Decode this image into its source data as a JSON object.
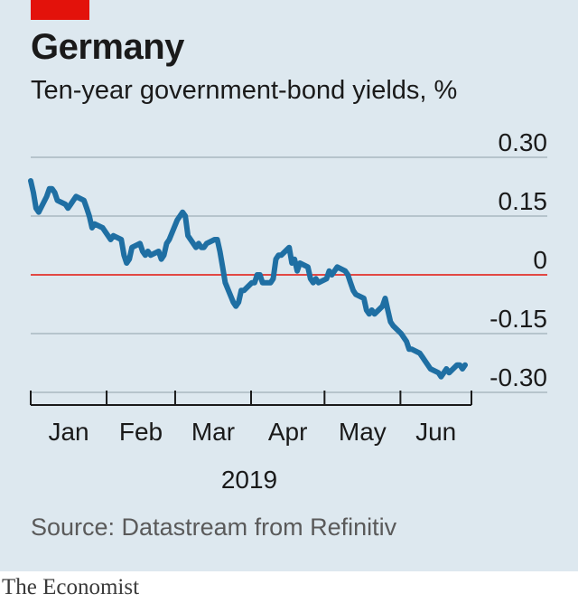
{
  "header": {
    "title": "Germany",
    "subtitle": "Ten-year government-bond yields, %"
  },
  "footer": {
    "source": "Source: Datastream from Refinitiv",
    "brand": "The Economist"
  },
  "colors": {
    "background": "#dde8ef",
    "line": "#1f6fa3",
    "zero_line": "#e3120b",
    "grid": "#aab7c0",
    "tag": "#e3120b"
  },
  "chart_data": {
    "type": "line",
    "title": "Germany",
    "subtitle": "Ten-year government-bond yields, %",
    "xlabel": "2019",
    "ylabel": "",
    "ylim": [
      -0.3,
      0.3
    ],
    "yticks": [
      0.3,
      0.15,
      0,
      -0.15,
      -0.3
    ],
    "ytick_labels": [
      "0.30",
      "0.15",
      "0",
      "-0.15",
      "-0.30"
    ],
    "months": [
      "Jan",
      "Feb",
      "Mar",
      "Apr",
      "May",
      "Jun"
    ],
    "year": "2019",
    "grid": true,
    "zero_line": true,
    "x_range": [
      "2019-01-01",
      "2019-06-13"
    ],
    "x": [
      "2019-01-01",
      "2019-01-02",
      "2019-01-03",
      "2019-01-04",
      "2019-01-07",
      "2019-01-08",
      "2019-01-09",
      "2019-01-10",
      "2019-01-11",
      "2019-01-14",
      "2019-01-15",
      "2019-01-16",
      "2019-01-17",
      "2019-01-18",
      "2019-01-21",
      "2019-01-22",
      "2019-01-23",
      "2019-01-24",
      "2019-01-25",
      "2019-01-28",
      "2019-01-29",
      "2019-01-30",
      "2019-01-31",
      "2019-02-01",
      "2019-02-04",
      "2019-02-05",
      "2019-02-06",
      "2019-02-07",
      "2019-02-08",
      "2019-02-11",
      "2019-02-12",
      "2019-02-13",
      "2019-02-14",
      "2019-02-15",
      "2019-02-18",
      "2019-02-19",
      "2019-02-20",
      "2019-02-21",
      "2019-02-22",
      "2019-02-25",
      "2019-02-26",
      "2019-02-27",
      "2019-02-28",
      "2019-03-01",
      "2019-03-04",
      "2019-03-05",
      "2019-03-06",
      "2019-03-07",
      "2019-03-08",
      "2019-03-11",
      "2019-03-12",
      "2019-03-13",
      "2019-03-14",
      "2019-03-15",
      "2019-03-18",
      "2019-03-19",
      "2019-03-20",
      "2019-03-21",
      "2019-03-22",
      "2019-03-25",
      "2019-03-26",
      "2019-03-27",
      "2019-03-28",
      "2019-03-29",
      "2019-04-01",
      "2019-04-02",
      "2019-04-03",
      "2019-04-04",
      "2019-04-05",
      "2019-04-08",
      "2019-04-09",
      "2019-04-10",
      "2019-04-11",
      "2019-04-12",
      "2019-04-15",
      "2019-04-16",
      "2019-04-17",
      "2019-04-18",
      "2019-04-19",
      "2019-04-22",
      "2019-04-23",
      "2019-04-24",
      "2019-04-25",
      "2019-04-26",
      "2019-04-29",
      "2019-04-30",
      "2019-05-01",
      "2019-05-02",
      "2019-05-03",
      "2019-05-06",
      "2019-05-07",
      "2019-05-08",
      "2019-05-09",
      "2019-05-10",
      "2019-05-13",
      "2019-05-14",
      "2019-05-15",
      "2019-05-16",
      "2019-05-17",
      "2019-05-20",
      "2019-05-21",
      "2019-05-22",
      "2019-05-23",
      "2019-05-24",
      "2019-05-27",
      "2019-05-28",
      "2019-05-29",
      "2019-05-30",
      "2019-05-31",
      "2019-06-03",
      "2019-06-04",
      "2019-06-05",
      "2019-06-06",
      "2019-06-07",
      "2019-06-10",
      "2019-06-11",
      "2019-06-12",
      "2019-06-13"
    ],
    "series": [
      {
        "values": [
          0.24,
          0.21,
          0.17,
          0.16,
          0.2,
          0.22,
          0.22,
          0.21,
          0.19,
          0.18,
          0.17,
          0.18,
          0.19,
          0.2,
          0.19,
          0.17,
          0.15,
          0.12,
          0.13,
          0.12,
          0.11,
          0.1,
          0.09,
          0.1,
          0.09,
          0.05,
          0.03,
          0.04,
          0.07,
          0.08,
          0.06,
          0.05,
          0.06,
          0.05,
          0.06,
          0.04,
          0.05,
          0.08,
          0.09,
          0.14,
          0.15,
          0.16,
          0.15,
          0.1,
          0.07,
          0.08,
          0.07,
          0.07,
          0.08,
          0.09,
          0.09,
          0.06,
          0.02,
          -0.02,
          -0.07,
          -0.08,
          -0.07,
          -0.04,
          -0.04,
          -0.02,
          -0.02,
          0.0,
          0.0,
          -0.02,
          -0.02,
          -0.01,
          0.04,
          0.05,
          0.05,
          0.07,
          0.03,
          0.04,
          0.01,
          0.03,
          0.02,
          -0.01,
          -0.02,
          -0.01,
          -0.02,
          -0.01,
          0.01,
          0.0,
          0.01,
          0.02,
          0.01,
          0.0,
          -0.02,
          -0.04,
          -0.05,
          -0.06,
          -0.09,
          -0.1,
          -0.09,
          -0.1,
          -0.08,
          -0.06,
          -0.09,
          -0.12,
          -0.13,
          -0.15,
          -0.16,
          -0.17,
          -0.19,
          -0.19,
          -0.2,
          -0.21,
          -0.22,
          -0.23,
          -0.24,
          -0.25,
          -0.26,
          -0.25,
          -0.24,
          -0.25,
          -0.23,
          -0.23,
          -0.24,
          -0.23
        ]
      }
    ]
  }
}
